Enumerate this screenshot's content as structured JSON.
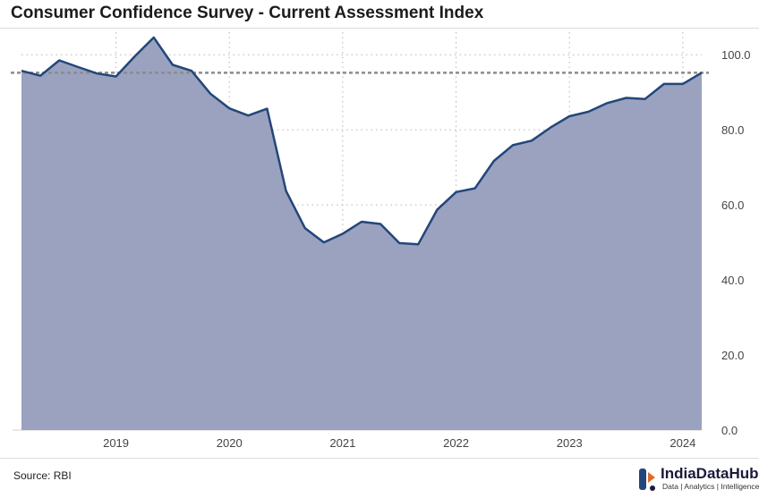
{
  "title": "Consumer Confidence Survey - Current Assessment Index",
  "source": "Source: RBI",
  "brand": {
    "name": "IndiaDataHub",
    "tagline": "Data | Analytics | Intelligence",
    "icon": "indiadatahub-logo-icon"
  },
  "colors": {
    "area_fill": "#9aa2bf",
    "line": "#23467a",
    "reference_line": "#8c8c8c",
    "grid": "#b5b5b5"
  },
  "chart_data": {
    "type": "area",
    "title": "Consumer Confidence Survey - Current Assessment Index",
    "xlabel": "",
    "ylabel": "",
    "x_tick_labels": [
      "2019",
      "2020",
      "2021",
      "2022",
      "2023",
      "2024"
    ],
    "y_tick_labels": [
      "0.0",
      "20.0",
      "40.0",
      "60.0",
      "80.0",
      "100.0"
    ],
    "ylim": [
      0,
      100
    ],
    "y_axis_side": "right",
    "grid": true,
    "legend": "none",
    "reference_line": 95.2,
    "series": [
      {
        "x": [
          "2018-03",
          "2018-05",
          "2018-07",
          "2018-09",
          "2018-11",
          "2019-01",
          "2019-03",
          "2019-05",
          "2019-07",
          "2019-09",
          "2019-11",
          "2020-01",
          "2020-03",
          "2020-05",
          "2020-07",
          "2020-09",
          "2020-11",
          "2021-01",
          "2021-03",
          "2021-05",
          "2021-07",
          "2021-09",
          "2021-11",
          "2022-01",
          "2022-03",
          "2022-05",
          "2022-07",
          "2022-09",
          "2022-11",
          "2023-01",
          "2023-03",
          "2023-05",
          "2023-07",
          "2023-09",
          "2023-11",
          "2024-01"
        ],
        "values": [
          95.7,
          94.4,
          98.5,
          96.7,
          95.0,
          94.2,
          99.6,
          104.6,
          97.3,
          95.7,
          89.6,
          85.7,
          83.8,
          85.6,
          63.7,
          53.8,
          50.0,
          52.3,
          55.5,
          54.9,
          49.8,
          49.5,
          58.7,
          63.4,
          64.4,
          71.7,
          75.9,
          77.1,
          80.6,
          83.6,
          84.8,
          87.1,
          88.5,
          88.2,
          92.2,
          92.2
        ]
      }
    ],
    "last_point": {
      "x": "2024-03",
      "value": 95.2
    }
  }
}
